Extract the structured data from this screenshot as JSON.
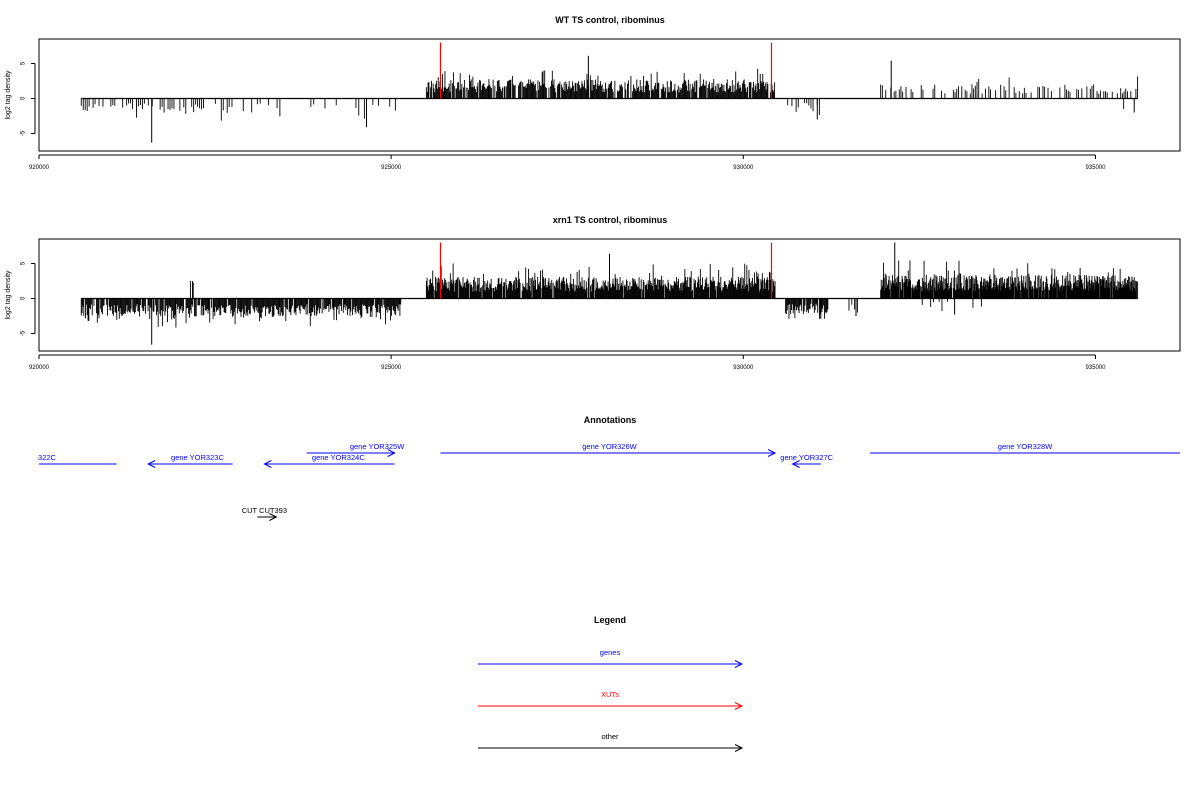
{
  "chart_data": [
    {
      "type": "bar",
      "title": "WT TS control, ribominus",
      "ylabel": "log2 tag density",
      "xlim": [
        920000,
        936200
      ],
      "ylim": [
        -7.5,
        8.5
      ],
      "xticks": [
        920000,
        925000,
        930000,
        935000
      ],
      "xtick_labels": [
        "920000",
        "925000",
        "930000",
        "935000"
      ],
      "yticks": [
        -5,
        0,
        5
      ],
      "ytick_labels": [
        "-5",
        "0",
        "5"
      ],
      "baseline": {
        "x": [
          920600,
          935600
        ],
        "y": 0
      },
      "marker_lines": {
        "color": "#ff0000",
        "x": [
          925700,
          930400
        ],
        "height": 8
      },
      "segments": [
        {
          "x": [
            920600,
            922700
          ],
          "sign": -1,
          "typ": 1.6,
          "peak": 6.3,
          "peak_x": 921600,
          "step": 28,
          "density": 0.55
        },
        {
          "x": [
            922700,
            925100
          ],
          "sign": -1,
          "typ": 1.4,
          "peak": 4.1,
          "peak_x": 924650,
          "step": 40,
          "density": 0.35
        },
        {
          "x": [
            925500,
            930450
          ],
          "sign": 1,
          "typ": 2.1,
          "peak": 6.1,
          "peak_x": 927800,
          "step": 12,
          "density": 0.9
        },
        {
          "x": [
            930600,
            931100
          ],
          "sign": -1,
          "typ": 1.6,
          "peak": 3.0,
          "peak_x": 931050,
          "step": 30,
          "density": 0.8
        },
        {
          "x": [
            931950,
            935600
          ],
          "sign": 1,
          "typ": 1.6,
          "peak": 5.4,
          "peak_x": 932100,
          "step": 24,
          "density": 0.55
        },
        {
          "x": [
            935400,
            935600
          ],
          "sign": -1,
          "typ": 1.5,
          "peak": 2.0,
          "peak_x": 935550,
          "step": 40,
          "density": 0.6
        }
      ],
      "seed": 11
    },
    {
      "type": "bar",
      "title": "xrn1 TS control, ribominus",
      "ylabel": "log2 tag density",
      "xlim": [
        920000,
        936200
      ],
      "ylim": [
        -7.5,
        8.5
      ],
      "xticks": [
        920000,
        925000,
        930000,
        935000
      ],
      "xtick_labels": [
        "920000",
        "925000",
        "930000",
        "935000"
      ],
      "yticks": [
        -5,
        0,
        5
      ],
      "ytick_labels": [
        "-5",
        "0",
        "5"
      ],
      "baseline": {
        "x": [
          920600,
          935600
        ],
        "y": 0
      },
      "marker_lines": {
        "color": "#ff0000",
        "x": [
          925700,
          930400
        ],
        "height": 8
      },
      "segments": [
        {
          "x": [
            920600,
            925150
          ],
          "sign": -1,
          "typ": 2.0,
          "peak": 6.6,
          "peak_x": 921600,
          "step": 12,
          "density": 0.9
        },
        {
          "x": [
            922150,
            922200
          ],
          "sign": 1,
          "typ": 2.5,
          "peak": 2.5,
          "peak_x": 922180,
          "step": 40,
          "density": 1.0
        },
        {
          "x": [
            925500,
            930450
          ],
          "sign": 1,
          "typ": 2.4,
          "peak": 6.4,
          "peak_x": 928100,
          "step": 10,
          "density": 0.95
        },
        {
          "x": [
            930600,
            931200
          ],
          "sign": -1,
          "typ": 1.8,
          "peak": 2.9,
          "peak_x": 931100,
          "step": 12,
          "density": 0.9
        },
        {
          "x": [
            931500,
            931700
          ],
          "sign": -1,
          "typ": 1.8,
          "peak": 2.5,
          "peak_x": 931600,
          "step": 40,
          "density": 0.8
        },
        {
          "x": [
            931950,
            935600
          ],
          "sign": 1,
          "typ": 2.6,
          "peak": 8.0,
          "peak_x": 932150,
          "step": 8,
          "density": 0.95
        },
        {
          "x": [
            932500,
            933400
          ],
          "sign": -1,
          "typ": 1.0,
          "peak": 2.3,
          "peak_x": 933000,
          "step": 40,
          "density": 0.3
        }
      ],
      "seed": 29
    }
  ],
  "annotations": {
    "title": "Annotations",
    "items": [
      {
        "label": "322C",
        "color": "#0000ff",
        "start": 920000,
        "end": 921100,
        "row": 2,
        "label_x": 920100,
        "direction": "none"
      },
      {
        "label": "gene YOR323C",
        "color": "#0000ff",
        "start": 922750,
        "end": 921550,
        "row": 2,
        "label_x": 922250,
        "direction": "left"
      },
      {
        "label": "gene YOR324C",
        "color": "#0000ff",
        "start": 925050,
        "end": 923200,
        "row": 2,
        "label_x": 924250,
        "direction": "left"
      },
      {
        "label": "gene YOR325W",
        "color": "#0000ff",
        "start": 923800,
        "end": 925050,
        "row": 1,
        "label_x": 924800,
        "direction": "right"
      },
      {
        "label": "gene YOR326W",
        "color": "#0000ff",
        "start": 925700,
        "end": 930450,
        "row": 1,
        "label_x": 928100,
        "direction": "right"
      },
      {
        "label": "gene YOR327C",
        "color": "#0000ff",
        "start": 931100,
        "end": 930700,
        "row": 2,
        "label_x": 930900,
        "direction": "left"
      },
      {
        "label": "gene YOR328W",
        "color": "#0000ff",
        "start": 931800,
        "end": 936200,
        "row": 1,
        "label_x": 934000,
        "direction": "none"
      },
      {
        "label": "CUT CUT393",
        "color": "#000000",
        "start": 923100,
        "end": 923370,
        "row": 3,
        "label_x": 923200,
        "direction": "right"
      }
    ]
  },
  "legend": {
    "title": "Legend",
    "items": [
      {
        "label": "genes",
        "color": "#0000ff"
      },
      {
        "label": "XUTs",
        "color": "#ff0000"
      },
      {
        "label": "other",
        "color": "#000000"
      }
    ]
  }
}
